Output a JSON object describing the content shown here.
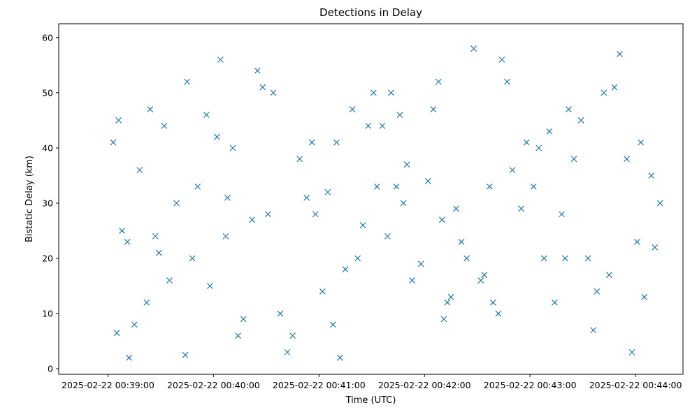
{
  "chart_data": {
    "type": "scatter",
    "title": "Detections in Delay",
    "xlabel": "Time (UTC)",
    "ylabel": "Bistatic Delay (km)",
    "x_ticks": [
      "2025-02-22 00:39:00",
      "2025-02-22 00:40:00",
      "2025-02-22 00:41:00",
      "2025-02-22 00:42:00",
      "2025-02-22 00:43:00",
      "2025-02-22 00:44:00"
    ],
    "y_ticks": [
      0,
      10,
      20,
      30,
      40,
      50,
      60
    ],
    "xlim": [
      "2025-02-22 00:38:32",
      "2025-02-22 00:44:27"
    ],
    "ylim": [
      -1.0,
      62.5
    ],
    "marker": "x",
    "color": "#1f77b4",
    "grid": false,
    "series": [
      {
        "x": [
          "00:39:03",
          "00:39:05",
          "00:39:06",
          "00:39:11",
          "00:39:12",
          "00:39:18",
          "00:39:22",
          "00:39:27",
          "00:39:29",
          "00:39:35",
          "00:39:44",
          "00:39:45",
          "00:39:51",
          "00:39:58",
          "00:40:02",
          "00:40:04",
          "00:40:11",
          "00:40:14",
          "00:40:22",
          "00:40:25",
          "00:40:34",
          "00:40:38",
          "00:40:42",
          "00:40:49",
          "00:40:53",
          "00:40:58",
          "00:41:02",
          "00:41:05",
          "00:41:12",
          "00:41:15",
          "00:41:19",
          "00:41:25",
          "00:41:28",
          "00:41:33",
          "00:41:39",
          "00:41:41",
          "00:41:46",
          "00:41:48",
          "00:41:50",
          "00:41:53",
          "00:41:58",
          "00:42:02",
          "00:42:05",
          "00:42:10",
          "00:42:11",
          "00:42:15",
          "00:42:18",
          "00:42:24",
          "00:42:28",
          "00:42:32",
          "00:42:37",
          "00:42:39",
          "00:42:42",
          "00:42:44",
          "00:42:50",
          "00:42:55",
          "00:42:58",
          "00:43:02",
          "00:43:08",
          "00:43:14",
          "00:43:18",
          "00:43:22",
          "00:43:25",
          "00:43:29",
          "00:43:33",
          "00:43:38",
          "00:43:42",
          "00:43:45",
          "00:43:48",
          "00:43:55",
          "00:43:58",
          "00:44:03",
          "00:44:05",
          "00:44:09",
          "00:44:14",
          "00:39:08",
          "00:39:15",
          "00:39:24",
          "00:39:32",
          "00:39:39",
          "00:39:48",
          "00:39:56",
          "00:40:07",
          "00:40:17",
          "00:40:28",
          "00:40:31",
          "00:40:45",
          "00:40:56",
          "00:41:08",
          "00:41:22",
          "00:41:31",
          "00:41:36",
          "00:41:44",
          "00:42:08",
          "00:42:21",
          "00:42:34",
          "00:42:47",
          "00:43:05",
          "00:43:11",
          "00:43:36",
          "00:43:51",
          "00:44:01",
          "00:44:11",
          "00:40:08",
          "00:41:10",
          "00:42:13",
          "00:43:20"
        ],
        "y": [
          41,
          6.5,
          45,
          23,
          2,
          36,
          12,
          24,
          21,
          16,
          2.5,
          52,
          33,
          15,
          42,
          56,
          40,
          6,
          27,
          54,
          50,
          10,
          3,
          38,
          31,
          28,
          14,
          32,
          2,
          18,
          47,
          26,
          44,
          33,
          24,
          50,
          46,
          30,
          37,
          16,
          19,
          34,
          47,
          27,
          9,
          13,
          29,
          20,
          58,
          16,
          33,
          12,
          10,
          56,
          36,
          29,
          41,
          33,
          20,
          12,
          28,
          47,
          38,
          45,
          20,
          14,
          50,
          17,
          51,
          38,
          3,
          41,
          13,
          35,
          30,
          25,
          8,
          47,
          44,
          30,
          20,
          46,
          24,
          9,
          51,
          28,
          6,
          41,
          8,
          20,
          50,
          44,
          33,
          52,
          23,
          17,
          52,
          40,
          43,
          7,
          57,
          23,
          22,
          31,
          41,
          12,
          20
        ]
      }
    ]
  }
}
